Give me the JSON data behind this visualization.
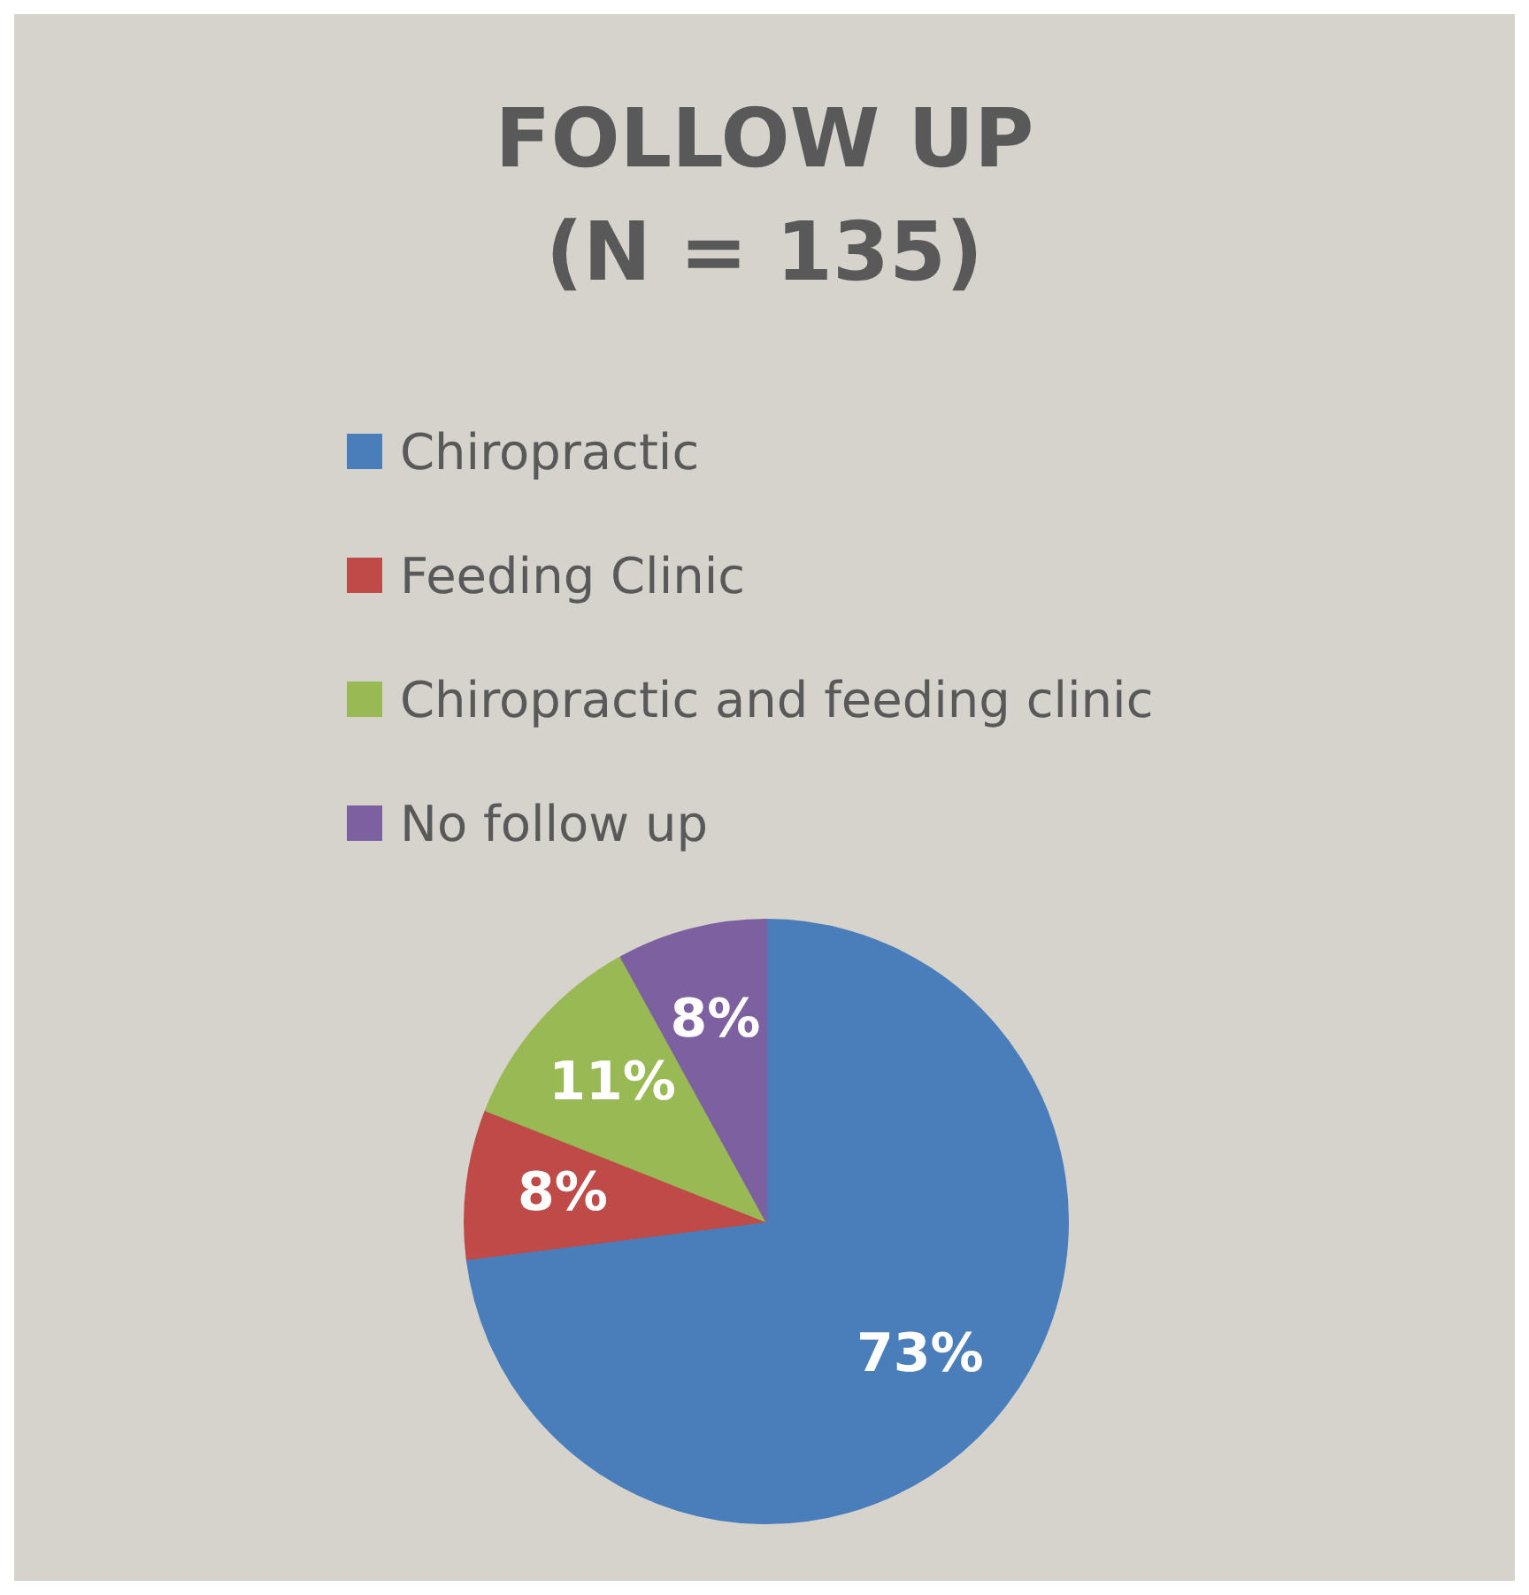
{
  "chart_data": {
    "type": "pie",
    "title": "FOLLOW UP\n(N = 135)",
    "categories": [
      "Chiropractic",
      "Feeding Clinic",
      "Chiropractic and feeding clinic",
      "No follow up"
    ],
    "values": [
      73,
      8,
      11,
      8
    ],
    "colors": [
      "#4a7ebb",
      "#be4b48",
      "#98b954",
      "#7d60a0"
    ],
    "value_labels": [
      "73%",
      "8%",
      "11%",
      "8%"
    ],
    "legend": "top"
  }
}
